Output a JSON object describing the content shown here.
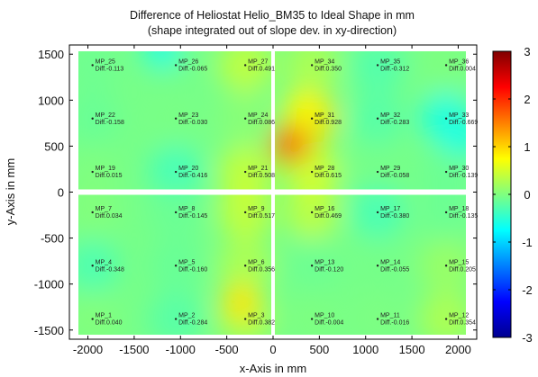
{
  "chart_data": {
    "type": "heatmap",
    "title": "Difference of Heliostat Helio_BM35 to Ideal Shape in mm",
    "subtitle": "(shape integrated out of slope dev. in xy-direction)",
    "xlabel": "x-Axis in mm",
    "ylabel": "y-Axis in mm",
    "xlim": [
      -2200,
      2200
    ],
    "ylim": [
      -1600,
      1600
    ],
    "xticks": [
      -2000,
      -1500,
      -1000,
      -500,
      0,
      500,
      1000,
      1500,
      2000
    ],
    "yticks": [
      1500,
      1000,
      500,
      0,
      -500,
      -1000,
      -1500
    ],
    "grid": false,
    "colorbar": {
      "min": -3,
      "max": 3,
      "ticks": [
        3,
        2,
        1,
        0,
        -1,
        -2,
        -3
      ],
      "colormap": "jet",
      "colors": [
        "#00008f",
        "#0000ff",
        "#00ffff",
        "#ffff00",
        "#ff0000",
        "#800000"
      ]
    },
    "measure_points": [
      {
        "label": "MP_25",
        "diff": "Diff.-0.113",
        "x": -1950,
        "y": 1380,
        "value": -0.113
      },
      {
        "label": "MP_26",
        "diff": "Diff.-0.065",
        "x": -1050,
        "y": 1380,
        "value": -0.065
      },
      {
        "label": "MP_27",
        "diff": "Diff.0.491",
        "x": -300,
        "y": 1380,
        "value": 0.491
      },
      {
        "label": "MP_34",
        "diff": "Diff.0.350",
        "x": 420,
        "y": 1380,
        "value": 0.35
      },
      {
        "label": "MP_35",
        "diff": "Diff.-0.312",
        "x": 1130,
        "y": 1380,
        "value": -0.312
      },
      {
        "label": "MP_36",
        "diff": "Diff.0.004",
        "x": 1870,
        "y": 1380,
        "value": 0.004
      },
      {
        "label": "MP_22",
        "diff": "Diff.-0.158",
        "x": -1950,
        "y": 800,
        "value": -0.158
      },
      {
        "label": "MP_23",
        "diff": "Diff.-0.030",
        "x": -1050,
        "y": 800,
        "value": -0.03
      },
      {
        "label": "MP_24",
        "diff": "Diff.0.086",
        "x": -300,
        "y": 800,
        "value": 0.086
      },
      {
        "label": "MP_31",
        "diff": "Diff.0.928",
        "x": 420,
        "y": 800,
        "value": 0.928
      },
      {
        "label": "MP_32",
        "diff": "Diff.-0.283",
        "x": 1130,
        "y": 800,
        "value": -0.283
      },
      {
        "label": "MP_33",
        "diff": "Diff.-0.669",
        "x": 1870,
        "y": 800,
        "value": -0.669
      },
      {
        "label": "MP_19",
        "diff": "Diff.0.015",
        "x": -1950,
        "y": 220,
        "value": 0.015
      },
      {
        "label": "MP_20",
        "diff": "Diff.-0.416",
        "x": -1050,
        "y": 220,
        "value": -0.416
      },
      {
        "label": "MP_21",
        "diff": "Diff.0.508",
        "x": -300,
        "y": 220,
        "value": 0.508
      },
      {
        "label": "MP_28",
        "diff": "Diff.0.615",
        "x": 420,
        "y": 220,
        "value": 0.615
      },
      {
        "label": "MP_29",
        "diff": "Diff.-0.058",
        "x": 1130,
        "y": 220,
        "value": -0.058
      },
      {
        "label": "MP_30",
        "diff": "Diff.-0.139",
        "x": 1870,
        "y": 220,
        "value": -0.139
      },
      {
        "label": "MP_7",
        "diff": "Diff.0.034",
        "x": -1950,
        "y": -220,
        "value": 0.034
      },
      {
        "label": "MP_8",
        "diff": "Diff.-0.145",
        "x": -1050,
        "y": -220,
        "value": -0.145
      },
      {
        "label": "MP_9",
        "diff": "Diff.0.517",
        "x": -300,
        "y": -220,
        "value": 0.517
      },
      {
        "label": "MP_16",
        "diff": "Diff.0.469",
        "x": 420,
        "y": -220,
        "value": 0.469
      },
      {
        "label": "MP_17",
        "diff": "Diff.-0.380",
        "x": 1130,
        "y": -220,
        "value": -0.38
      },
      {
        "label": "MP_18",
        "diff": "Diff.-0.135",
        "x": 1870,
        "y": -220,
        "value": -0.135
      },
      {
        "label": "MP_4",
        "diff": "Diff.-0.348",
        "x": -1950,
        "y": -800,
        "value": -0.348
      },
      {
        "label": "MP_5",
        "diff": "Diff.-0.160",
        "x": -1050,
        "y": -800,
        "value": -0.16
      },
      {
        "label": "MP_6",
        "diff": "Diff.0.356",
        "x": -300,
        "y": -800,
        "value": 0.356
      },
      {
        "label": "MP_13",
        "diff": "Diff.-0.120",
        "x": 420,
        "y": -800,
        "value": -0.12
      },
      {
        "label": "MP_14",
        "diff": "Diff.-0.055",
        "x": 1130,
        "y": -800,
        "value": -0.055
      },
      {
        "label": "MP_15",
        "diff": "Diff.0.205",
        "x": 1870,
        "y": -800,
        "value": 0.205
      },
      {
        "label": "MP_1",
        "diff": "Diff.0.040",
        "x": -1950,
        "y": -1380,
        "value": 0.04
      },
      {
        "label": "MP_2",
        "diff": "Diff.-0.284",
        "x": -1050,
        "y": -1380,
        "value": -0.284
      },
      {
        "label": "MP_3",
        "diff": "Diff.0.382",
        "x": -300,
        "y": -1380,
        "value": 0.382
      },
      {
        "label": "MP_10",
        "diff": "Diff.-0.004",
        "x": 420,
        "y": -1380,
        "value": -0.004
      },
      {
        "label": "MP_11",
        "diff": "Diff.-0.016",
        "x": 1130,
        "y": -1380,
        "value": -0.016
      },
      {
        "label": "MP_12",
        "diff": "Diff.0.354",
        "x": 1870,
        "y": -1380,
        "value": 0.354
      }
    ],
    "hotspots": [
      {
        "x": 180,
        "y": 520,
        "value": 1.6
      },
      {
        "x": 330,
        "y": 900,
        "value": 0.8
      },
      {
        "x": -350,
        "y": -1200,
        "value": 0.9
      },
      {
        "x": -1200,
        "y": 1550,
        "value": -0.6
      },
      {
        "x": 2050,
        "y": 600,
        "value": -0.6
      }
    ]
  }
}
